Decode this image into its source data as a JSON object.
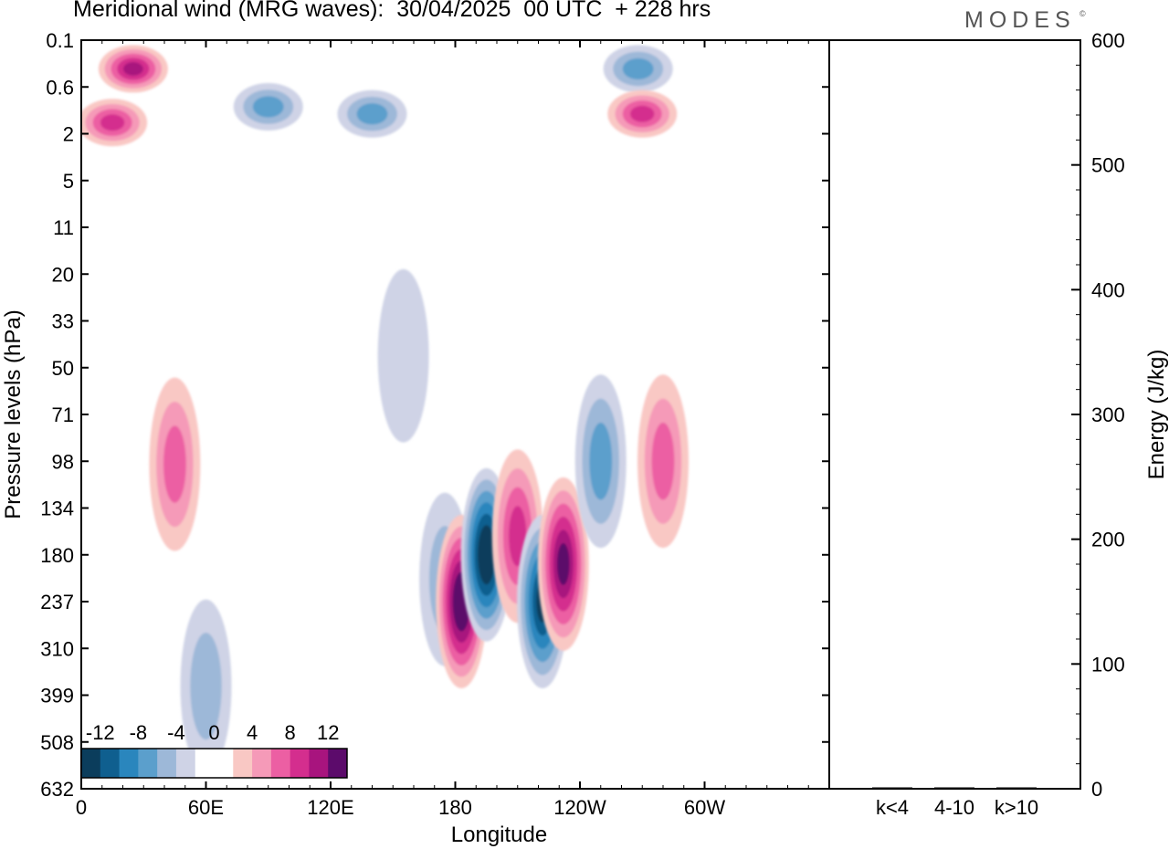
{
  "header": {
    "title": "Meridional wind (MRG waves):  30/04/2025  00 UTC  + 228 hrs",
    "brand": "MODES",
    "brand_mark": "©"
  },
  "chart_data": [
    {
      "type": "heatmap",
      "title": "Meridional wind (MRG waves):  30/04/2025  00 UTC  + 228 hrs",
      "xlabel": "Longitude",
      "ylabel": "Pressure levels (hPa)",
      "x_ticks": [
        "0",
        "60E",
        "120E",
        "180",
        "120W",
        "60W"
      ],
      "y_ticks": [
        "0.1",
        "0.6",
        "2",
        "5",
        "11",
        "20",
        "33",
        "50",
        "71",
        "98",
        "134",
        "180",
        "237",
        "310",
        "399",
        "508",
        "632"
      ],
      "colorbar": {
        "labels": [
          "-12",
          "-8",
          "-4",
          "0",
          "4",
          "8",
          "12"
        ],
        "levels": [
          -14,
          -12,
          -10,
          -8,
          -6,
          -4,
          -2,
          0,
          2,
          4,
          6,
          8,
          10,
          12,
          14
        ],
        "colors": [
          "#0b3d5c",
          "#0f5f8f",
          "#2a86bd",
          "#5b9fcc",
          "#9db8d8",
          "#cfd3e6",
          "#ffffff",
          "#ffffff",
          "#f9c8c4",
          "#f59ab8",
          "#ec5fa3",
          "#d42e8e",
          "#a8147e",
          "#5c0b6b"
        ]
      },
      "features": [
        {
          "lon": 175,
          "level": 208,
          "value": -5
        },
        {
          "lon": 183,
          "level": 237,
          "value": 14
        },
        {
          "lon": 195,
          "level": 180,
          "value": -14
        },
        {
          "lon": 210,
          "level": 160,
          "value": 8
        },
        {
          "lon": 222,
          "level": 237,
          "value": -12
        },
        {
          "lon": 232,
          "level": 190,
          "value": 12
        },
        {
          "lon": 250,
          "level": 98,
          "value": -6
        },
        {
          "lon": 280,
          "level": 98,
          "value": 6
        },
        {
          "lon": 25,
          "level": 0.3,
          "value": 10
        },
        {
          "lon": 15,
          "level": 1.5,
          "value": 8
        },
        {
          "lon": 90,
          "level": 1,
          "value": -6
        },
        {
          "lon": 140,
          "level": 1.2,
          "value": -6
        },
        {
          "lon": 268,
          "level": 0.3,
          "value": -6
        },
        {
          "lon": 270,
          "level": 1.2,
          "value": 8
        },
        {
          "lon": 155,
          "level": 45,
          "value": -3
        },
        {
          "lon": 45,
          "level": 100,
          "value": 6
        },
        {
          "lon": 60,
          "level": 380,
          "value": -4
        }
      ]
    },
    {
      "type": "bar",
      "ylabel": "Energy (J/kg)",
      "categories": [
        "k<4",
        "4-10",
        "k>10"
      ],
      "values": [
        0,
        1,
        0
      ],
      "ylim": [
        0,
        600
      ],
      "y_ticks": [
        "0",
        "100",
        "200",
        "300",
        "400",
        "500",
        "600"
      ]
    }
  ]
}
